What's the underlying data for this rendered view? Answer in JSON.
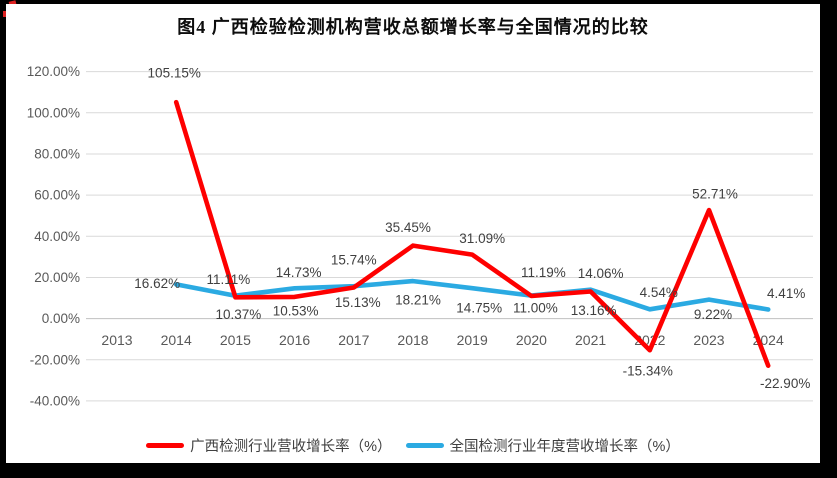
{
  "frame": {
    "background": "#000000",
    "card_background": "#ffffff"
  },
  "chart": {
    "title": "图4 广西检验检测机构营收总额增长率与全国情况的比较",
    "legend": [
      "广西检测行业营收增长率（%）",
      "全国检测行业年度营收增长率（%）"
    ]
  },
  "chart_data": {
    "type": "line",
    "title": "图4 广西检验检测机构营收总额增长率与全国情况的比较",
    "categories": [
      "2013",
      "2014",
      "2015",
      "2016",
      "2017",
      "2018",
      "2019",
      "2020",
      "2021",
      "2022",
      "2023",
      "2024"
    ],
    "series": [
      {
        "name": "广西检测行业营收增长率（%）",
        "color": "#fe0000",
        "values": [
          null,
          105.15,
          10.37,
          10.53,
          15.13,
          35.45,
          31.09,
          11.0,
          13.16,
          -15.34,
          52.71,
          -22.9
        ]
      },
      {
        "name": "全国检测行业年度营收增长率（%）",
        "color": "#2baae2",
        "values": [
          null,
          16.62,
          11.11,
          14.73,
          15.74,
          18.21,
          14.75,
          11.19,
          14.06,
          4.54,
          9.22,
          4.41
        ]
      }
    ],
    "ylim": [
      -40,
      120
    ],
    "ytick_step": 20,
    "ytick_labels": [
      "120.00%",
      "100.00%",
      "80.00%",
      "60.00%",
      "40.00%",
      "20.00%",
      "0.00%",
      "-20.00%",
      "-40.00%"
    ],
    "data_label_format": "0.00%",
    "grid": true,
    "gridline_color": "#d9d9d9",
    "zero_line_color": "#c0c0c0",
    "axis_text_color": "#595959",
    "data_label_color": "#404040",
    "legend_position": "bottom",
    "data_labels": true
  }
}
